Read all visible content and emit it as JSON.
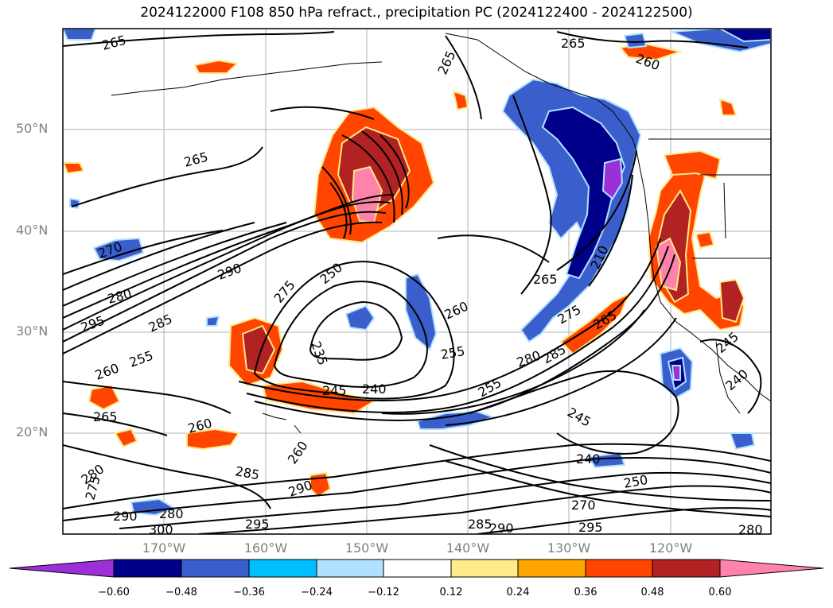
{
  "title": "2024122000 F108 850 hPa refract., precipitation PC (2024122400 - 2024122500)",
  "lat_labels": [
    "50°N",
    "40°N",
    "30°N",
    "20°N"
  ],
  "lon_labels": [
    "170°W",
    "160°W",
    "150°W",
    "140°W",
    "130°W",
    "120°W"
  ],
  "colorbar": {
    "ticks": [
      "−0.60",
      "−0.48",
      "−0.36",
      "−0.24",
      "−0.12",
      "0.12",
      "0.24",
      "0.36",
      "0.48",
      "0.60"
    ],
    "colors": [
      "#9b30d9",
      "#00008b",
      "#3a5fcd",
      "#00bfff",
      "#b0e2ff",
      "#ffffff",
      "#ffeb8a",
      "#ffa500",
      "#ff4500",
      "#b22222",
      "#ff82ab"
    ]
  },
  "contour_labels": [
    "265",
    "265",
    "265",
    "260",
    "265",
    "270",
    "290",
    "280",
    "295",
    "285",
    "260",
    "255",
    "265",
    "275",
    "250",
    "235",
    "245",
    "240",
    "260",
    "255",
    "265",
    "280",
    "285",
    "275",
    "265",
    "210",
    "255",
    "245",
    "240",
    "250",
    "270",
    "295",
    "285",
    "290",
    "280",
    "275",
    "280",
    "290",
    "300",
    "295",
    "285",
    "290",
    "280",
    "260",
    "240",
    "245",
    "260"
  ]
}
